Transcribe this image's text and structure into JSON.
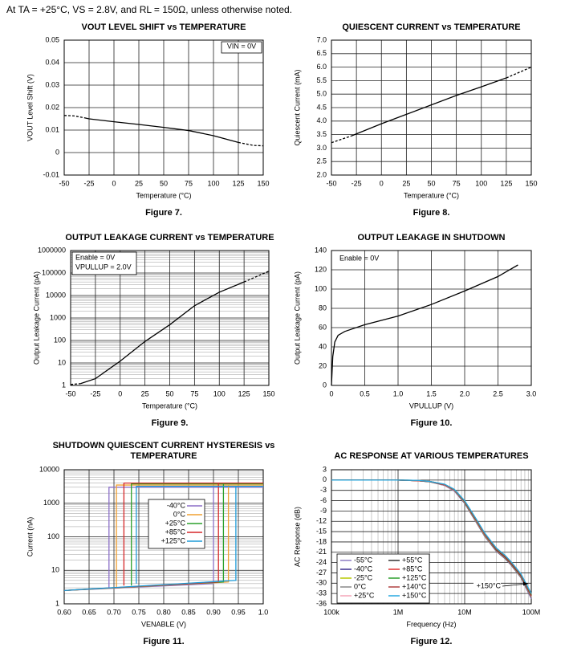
{
  "header": "At TA = +25°C, VS = 2.8V, and RL = 150Ω, unless otherwise noted.",
  "chart_data": [
    {
      "type": "line",
      "title": "VOUT LEVEL SHIFT vs TEMPERATURE",
      "xlabel": "Temperature (°C)",
      "ylabel": "VOUT Level Shift (V)",
      "caption": "Figure 7.",
      "xlim": [
        -50,
        150
      ],
      "xticks": [
        -50,
        -25,
        0,
        25,
        50,
        75,
        100,
        125,
        150
      ],
      "ylim": [
        -0.01,
        0.05
      ],
      "yticks": [
        -0.01,
        0,
        0.01,
        0.02,
        0.03,
        0.04,
        0.05
      ],
      "grid": true,
      "annotations": [
        "VIN = 0V"
      ],
      "series": [
        {
          "color": "#000000",
          "style": "dashed",
          "x": [
            -50,
            -40,
            -30
          ],
          "values": [
            0.0165,
            0.0163,
            0.0155
          ]
        },
        {
          "color": "#000000",
          "style": "solid",
          "x": [
            -30,
            -25,
            0,
            25,
            50,
            75,
            100,
            125
          ],
          "values": [
            0.0155,
            0.015,
            0.0137,
            0.0125,
            0.0112,
            0.0098,
            0.0075,
            0.0045
          ]
        },
        {
          "color": "#000000",
          "style": "dashed",
          "x": [
            125,
            140,
            150
          ],
          "values": [
            0.0045,
            0.0032,
            0.003
          ]
        }
      ]
    },
    {
      "type": "line",
      "title": "QUIESCENT CURRENT vs TEMPERATURE",
      "xlabel": "Temperature (°C)",
      "ylabel": "Quiescent Current (mA)",
      "caption": "Figure 8.",
      "xlim": [
        -50,
        150
      ],
      "xticks": [
        -50,
        -25,
        0,
        25,
        50,
        75,
        100,
        125,
        150
      ],
      "ylim": [
        2,
        7
      ],
      "yticks": [
        {
          "value": 2,
          "label": "2.0"
        },
        2.5,
        {
          "value": 3,
          "label": "3.0"
        },
        3.5,
        {
          "value": 4,
          "label": "4.0"
        },
        4.5,
        {
          "value": 5,
          "label": "5.0"
        },
        5.5,
        {
          "value": 6,
          "label": "6.0"
        },
        6.5,
        {
          "value": 7,
          "label": "7.0"
        }
      ],
      "grid": true,
      "series": [
        {
          "color": "#000000",
          "style": "dashed",
          "x": [
            -50,
            -30
          ],
          "values": [
            3.2,
            3.45
          ]
        },
        {
          "color": "#000000",
          "style": "solid",
          "x": [
            -30,
            0,
            25,
            50,
            75,
            100,
            125
          ],
          "values": [
            3.45,
            3.9,
            4.25,
            4.6,
            4.95,
            5.27,
            5.6
          ]
        },
        {
          "color": "#000000",
          "style": "dashed",
          "x": [
            125,
            150
          ],
          "values": [
            5.6,
            6.0
          ]
        }
      ]
    },
    {
      "type": "line",
      "title": "OUTPUT LEAKAGE CURRENT vs TEMPERATURE",
      "xlabel": "Temperature (°C)",
      "ylabel": "Output Leakage Current (pA)",
      "caption": "Figure 9.",
      "xlim": [
        -50,
        150
      ],
      "xticks": [
        -50,
        -25,
        0,
        25,
        50,
        75,
        100,
        125,
        150
      ],
      "ylim": [
        1,
        1000000
      ],
      "ylog": true,
      "yticks": [
        1,
        10,
        100,
        1000,
        10000,
        100000,
        1000000
      ],
      "grid": true,
      "annotations": [
        "Enable = 0V",
        "VPULLUP = 2.0V"
      ],
      "series": [
        {
          "color": "#000000",
          "style": "dashed",
          "x": [
            -50,
            -40
          ],
          "values": [
            1.1,
            1.2
          ]
        },
        {
          "color": "#000000",
          "style": "solid",
          "x": [
            -40,
            -25,
            0,
            25,
            50,
            75,
            100,
            125
          ],
          "values": [
            1.2,
            2,
            12,
            90,
            500,
            3500,
            14000,
            40000
          ]
        },
        {
          "color": "#000000",
          "style": "dashed",
          "x": [
            125,
            150
          ],
          "values": [
            40000,
            120000
          ]
        }
      ]
    },
    {
      "type": "line",
      "title": "OUTPUT LEAKAGE IN SHUTDOWN",
      "xlabel": "VPULLUP (V)",
      "ylabel": "Output Leakage Current (pA)",
      "caption": "Figure 10.",
      "xlim": [
        0,
        3
      ],
      "xticks": [
        0,
        0.5,
        {
          "value": 1,
          "label": "1.0"
        },
        1.5,
        {
          "value": 2,
          "label": "2.0"
        },
        2.5,
        {
          "value": 3,
          "label": "3.0"
        }
      ],
      "ylim": [
        0,
        140
      ],
      "yticks": [
        0,
        20,
        40,
        60,
        80,
        100,
        120,
        140
      ],
      "grid": true,
      "annotations": [
        "Enable = 0V"
      ],
      "series": [
        {
          "color": "#000000",
          "style": "solid",
          "x": [
            0,
            0.02,
            0.05,
            0.1,
            0.2,
            0.5,
            1.0,
            1.5,
            2.0,
            2.5,
            2.8
          ],
          "values": [
            0,
            30,
            45,
            52,
            56,
            63,
            72,
            84,
            98,
            113,
            125
          ]
        }
      ]
    },
    {
      "type": "line",
      "title": "SHUTDOWN QUIESCENT CURRENT HYSTERESIS vs TEMPERATURE",
      "xlabel": "VENABLE (V)",
      "ylabel": "Current (nA)",
      "caption": "Figure 11.",
      "xlim": [
        0.6,
        1.0
      ],
      "xticks": [
        {
          "value": 0.6,
          "label": "0.60"
        },
        0.65,
        {
          "value": 0.7,
          "label": "0.70"
        },
        0.75,
        {
          "value": 0.8,
          "label": "0.80"
        },
        0.85,
        {
          "value": 0.9,
          "label": "0.90"
        },
        0.95,
        {
          "value": 1.0,
          "label": "1.0"
        }
      ],
      "ylim": [
        1,
        10000
      ],
      "ylog": true,
      "yticks": [
        1,
        10,
        100,
        1000,
        10000
      ],
      "grid": true,
      "series": [
        {
          "name": "-40°C",
          "color": "#8b6fc7",
          "style": "solid",
          "x": [
            0.6,
            0.9,
            0.9,
            1.0,
            0.69,
            0.69
          ],
          "values": [
            2.5,
            4,
            3000,
            3000,
            3000,
            3
          ]
        },
        {
          "name": "0°C",
          "color": "#f0a030",
          "style": "solid",
          "x": [
            0.6,
            0.93,
            0.93,
            1.0,
            0.705,
            0.705
          ],
          "values": [
            2.5,
            4.5,
            3500,
            3500,
            3500,
            3
          ]
        },
        {
          "name": "+25°C",
          "color": "#2ca02c",
          "style": "solid",
          "x": [
            0.6,
            0.92,
            0.92,
            1.0,
            0.735,
            0.735
          ],
          "values": [
            2.5,
            4.5,
            3800,
            3800,
            3800,
            3.5
          ]
        },
        {
          "name": "+85°C",
          "color": "#d62728",
          "style": "solid",
          "x": [
            0.6,
            0.91,
            0.91,
            1.0,
            0.72,
            0.72
          ],
          "values": [
            2.5,
            4.5,
            4000,
            4000,
            4000,
            3.5
          ]
        },
        {
          "name": "+125°C",
          "color": "#1f9bd7",
          "style": "solid",
          "x": [
            0.6,
            0.945,
            0.945,
            1.0,
            0.745,
            0.745
          ],
          "values": [
            2.5,
            5,
            3200,
            3200,
            3200,
            4
          ]
        }
      ]
    },
    {
      "type": "line",
      "title": "AC RESPONSE AT VARIOUS TEMPERATURES",
      "xlabel": "Frequency (Hz)",
      "ylabel": "AC Response (dB)",
      "caption": "Figure 12.",
      "xlim": [
        100000,
        100000000
      ],
      "xlog": true,
      "xticks": [
        {
          "value": 100000,
          "label": "100k"
        },
        {
          "value": 1000000,
          "label": "1M"
        },
        {
          "value": 10000000,
          "label": "10M"
        },
        {
          "value": 100000000,
          "label": "100M"
        }
      ],
      "ylim": [
        -36,
        3
      ],
      "yticks": [
        3,
        0,
        -3,
        -6,
        -9,
        -12,
        -15,
        -18,
        -21,
        -24,
        -27,
        -30,
        -33,
        -36
      ],
      "grid": true,
      "annotations": [
        "+150°C"
      ],
      "series": [
        {
          "name": "-55°C",
          "color": "#8e7cc3",
          "style": "solid",
          "x": [
            100000,
            1000000,
            2000000,
            3000000,
            5000000,
            7000000,
            10000000,
            15000000,
            20000000,
            30000000,
            40000000,
            50000000,
            70000000,
            100000000
          ],
          "values": [
            0,
            0,
            -0.2,
            -0.5,
            -1.6,
            -3.2,
            -6.8,
            -12.4,
            -16.4,
            -20.8,
            -22.8,
            -24.8,
            -28.4,
            -34.5
          ]
        },
        {
          "name": "-40°C",
          "color": "#3c2f8f",
          "style": "solid",
          "x": [
            100000,
            1000000,
            2000000,
            3000000,
            5000000,
            7000000,
            10000000,
            15000000,
            20000000,
            30000000,
            40000000,
            50000000,
            70000000,
            100000000
          ],
          "values": [
            0,
            0,
            -0.2,
            -0.5,
            -1.5,
            -3.1,
            -6.7,
            -12.3,
            -16.3,
            -20.7,
            -22.7,
            -24.7,
            -28.3,
            -34.3
          ]
        },
        {
          "name": "-25°C",
          "color": "#b7c800",
          "style": "solid",
          "x": [
            100000,
            1000000,
            2000000,
            3000000,
            5000000,
            7000000,
            10000000,
            15000000,
            20000000,
            30000000,
            40000000,
            50000000,
            70000000,
            100000000
          ],
          "values": [
            0,
            0,
            -0.2,
            -0.5,
            -1.5,
            -3.0,
            -6.6,
            -12.2,
            -16.2,
            -20.6,
            -22.6,
            -24.6,
            -28.2,
            -34.1
          ]
        },
        {
          "name": "0°C",
          "color": "#888888",
          "style": "solid",
          "x": [
            100000,
            1000000,
            2000000,
            3000000,
            5000000,
            7000000,
            10000000,
            15000000,
            20000000,
            30000000,
            40000000,
            50000000,
            70000000,
            100000000
          ],
          "values": [
            0,
            0,
            -0.2,
            -0.5,
            -1.5,
            -3.0,
            -6.5,
            -12.1,
            -16.1,
            -20.5,
            -22.5,
            -24.5,
            -28.1,
            -34.0
          ]
        },
        {
          "name": "+25°C",
          "color": "#f4a6b8",
          "style": "solid",
          "x": [
            100000,
            1000000,
            2000000,
            3000000,
            5000000,
            7000000,
            10000000,
            15000000,
            20000000,
            30000000,
            40000000,
            50000000,
            70000000,
            100000000
          ],
          "values": [
            0,
            0,
            -0.2,
            -0.5,
            -1.5,
            -3.0,
            -6.5,
            -12.0,
            -16.0,
            -20.5,
            -22.5,
            -24.5,
            -28.0,
            -34.0
          ]
        },
        {
          "name": "+55°C",
          "color": "#333333",
          "style": "solid",
          "x": [
            100000,
            1000000,
            2000000,
            3000000,
            5000000,
            7000000,
            10000000,
            15000000,
            20000000,
            30000000,
            40000000,
            50000000,
            70000000,
            100000000
          ],
          "values": [
            0,
            0,
            -0.2,
            -0.5,
            -1.4,
            -2.9,
            -6.4,
            -11.9,
            -15.9,
            -20.4,
            -22.4,
            -24.4,
            -27.9,
            -33.8
          ]
        },
        {
          "name": "+85°C",
          "color": "#e03030",
          "style": "solid",
          "x": [
            100000,
            1000000,
            2000000,
            3000000,
            5000000,
            7000000,
            10000000,
            15000000,
            20000000,
            30000000,
            40000000,
            50000000,
            70000000,
            100000000
          ],
          "values": [
            0,
            0,
            -0.2,
            -0.4,
            -1.4,
            -2.9,
            -6.3,
            -11.8,
            -15.8,
            -20.2,
            -22.2,
            -24.2,
            -27.7,
            -33.6
          ]
        },
        {
          "name": "+125°C",
          "color": "#2a9d2a",
          "style": "solid",
          "x": [
            100000,
            1000000,
            2000000,
            3000000,
            5000000,
            7000000,
            10000000,
            15000000,
            20000000,
            30000000,
            40000000,
            50000000,
            70000000,
            100000000
          ],
          "values": [
            0,
            0,
            -0.1,
            -0.4,
            -1.3,
            -2.8,
            -6.2,
            -11.6,
            -15.6,
            -20.0,
            -22.0,
            -24.0,
            -27.5,
            -33.3
          ]
        },
        {
          "name": "+140°C",
          "color": "#b04040",
          "style": "solid",
          "x": [
            100000,
            1000000,
            2000000,
            3000000,
            5000000,
            7000000,
            10000000,
            15000000,
            20000000,
            30000000,
            40000000,
            50000000,
            70000000,
            100000000
          ],
          "values": [
            0,
            0,
            -0.1,
            -0.4,
            -1.3,
            -2.7,
            -6.1,
            -11.5,
            -15.5,
            -19.9,
            -21.9,
            -23.9,
            -27.4,
            -33.1
          ]
        },
        {
          "name": "+150°C",
          "color": "#29a8e0",
          "style": "solid",
          "x": [
            100000,
            1000000,
            2000000,
            3000000,
            5000000,
            7000000,
            10000000,
            15000000,
            20000000,
            30000000,
            40000000,
            50000000,
            70000000,
            100000000
          ],
          "values": [
            0,
            0,
            -0.1,
            -0.4,
            -1.2,
            -2.7,
            -6.0,
            -11.4,
            -15.4,
            -19.8,
            -21.8,
            -23.8,
            -27.3,
            -33.0
          ]
        }
      ]
    }
  ]
}
